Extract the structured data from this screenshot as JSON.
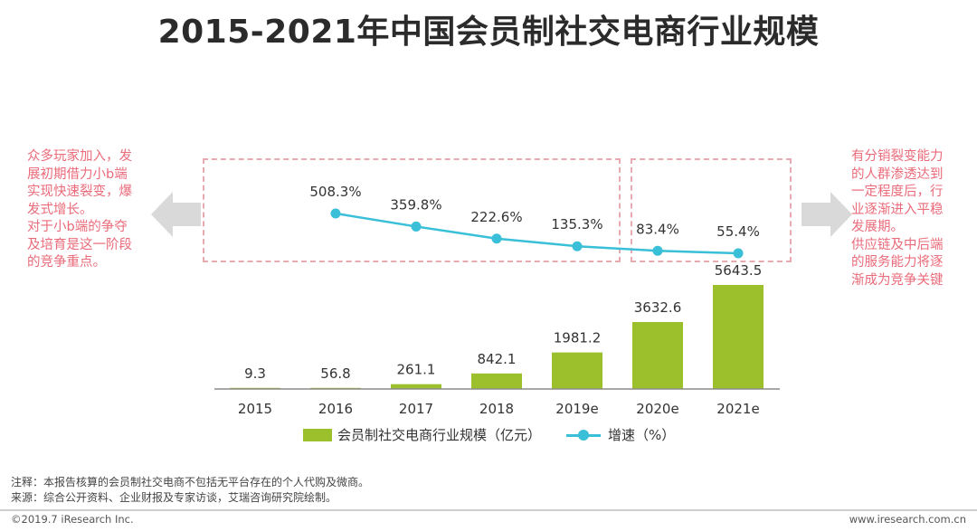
{
  "title": "2015-2021年中国会员制社交电商行业规模",
  "left_note": [
    "众多玩家加入，发",
    "展初期借力小b端",
    "实现快速裂变，爆",
    "发式增长。",
    "对于小b端的争夺",
    "及培育是这一阶段",
    "的竞争重点。"
  ],
  "right_note": [
    "有分销裂变能力",
    "的人群渗透达到",
    "一定程度后，行",
    "业逐渐进入平稳",
    "发展期。",
    "供应链及中后端",
    "的服务能力将逐",
    "渐成为竞争关键"
  ],
  "legend": {
    "bar_label": "会员制社交电商行业规模（亿元）",
    "line_label": "增速（%）"
  },
  "notes": {
    "note1": "注释：本报告核算的会员制社交电商不包括无平台存在的个人代购及微商。",
    "note2": "来源：综合公开资料、企业财报及专家访谈，艾瑞咨询研究院绘制。"
  },
  "footer": {
    "left": "©2019.7 iResearch Inc.",
    "right": "www.iresearch.com.cn"
  },
  "colors": {
    "bar": "#9bc02b",
    "line": "#39bfd7",
    "note_text": "#ea6b7a",
    "dash_border": "#e7aab0",
    "arrow": "#d9d9d9"
  },
  "chart_data": {
    "type": "bar",
    "categories": [
      "2015",
      "2016",
      "2017",
      "2018",
      "2019e",
      "2020e",
      "2021e"
    ],
    "series": [
      {
        "name": "会员制社交电商行业规模（亿元）",
        "type": "bar",
        "values": [
          9.3,
          56.8,
          261.1,
          842.1,
          1981.2,
          3632.6,
          5643.5
        ],
        "labels": [
          "9.3",
          "56.8",
          "261.1",
          "842.1",
          "1981.2",
          "3632.6",
          "5643.5"
        ]
      },
      {
        "name": "增速（%）",
        "type": "line",
        "values": [
          null,
          508.3,
          359.8,
          222.6,
          135.3,
          83.4,
          55.4
        ],
        "labels": [
          "",
          "508.3%",
          "359.8%",
          "222.6%",
          "135.3%",
          "83.4%",
          "55.4%"
        ]
      }
    ],
    "legend_position": "bottom",
    "grid": false
  }
}
